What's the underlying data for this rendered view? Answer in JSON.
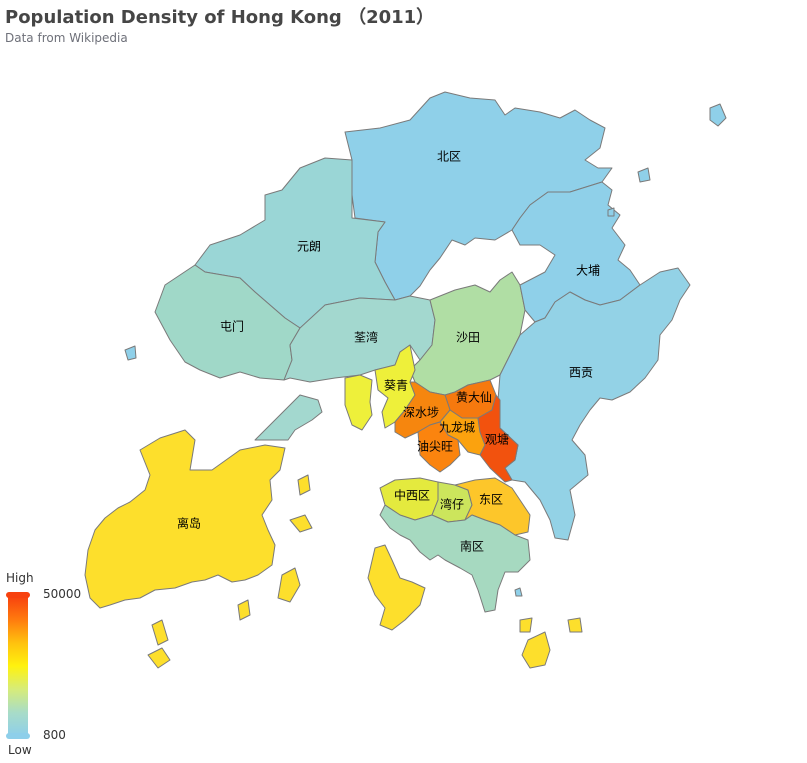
{
  "title": "Population Density of Hong Kong （2011）",
  "subtitle": "Data from Wikipedia",
  "legend": {
    "high_text": "High",
    "low_text": "Low",
    "max": 50000,
    "min": 800,
    "max_label": "50000",
    "min_label": "800",
    "colors": [
      "#50a3ba",
      "#eac736",
      "#d94e5d"
    ],
    "gradient": [
      "#8ecfea",
      "#a8dcc8",
      "#d6ec7a",
      "#fff20e",
      "#ffc10e",
      "#ff7a0e",
      "#f7410e"
    ]
  },
  "districts": [
    {
      "name": "北区",
      "color": "#8fd0e9"
    },
    {
      "name": "元朗",
      "color": "#9ad6d6"
    },
    {
      "name": "屯门",
      "color": "#a0d8c8"
    },
    {
      "name": "荃湾",
      "color": "#a3d8cf"
    },
    {
      "name": "沙田",
      "color": "#b0dea4"
    },
    {
      "name": "大埔",
      "color": "#8fd0e9"
    },
    {
      "name": "西贡",
      "color": "#93d2e6"
    },
    {
      "name": "葵青",
      "color": "#eef03a"
    },
    {
      "name": "黄大仙",
      "color": "#f6790e"
    },
    {
      "name": "深水埗",
      "color": "#f6860e"
    },
    {
      "name": "九龙城",
      "color": "#fba20e"
    },
    {
      "name": "观塘",
      "color": "#f2520e"
    },
    {
      "name": "油尖旺",
      "color": "#fb840e"
    },
    {
      "name": "离岛",
      "color": "#fddf2c"
    },
    {
      "name": "中西区",
      "color": "#e4ea3e"
    },
    {
      "name": "湾仔",
      "color": "#cce55c"
    },
    {
      "name": "东区",
      "color": "#fdc62a"
    },
    {
      "name": "南区",
      "color": "#a6d9c0"
    }
  ]
}
